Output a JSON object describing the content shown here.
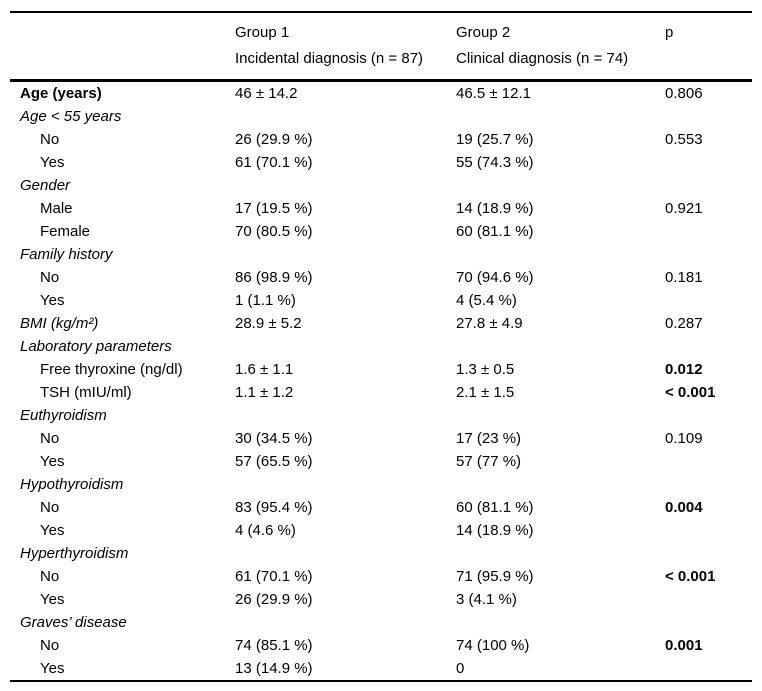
{
  "table": {
    "columns": [
      {
        "key": "label",
        "title": "",
        "subtitle": ""
      },
      {
        "key": "group1",
        "title": "Group 1",
        "subtitle": "Incidental diagnosis (n = 87)"
      },
      {
        "key": "group2",
        "title": "Group 2",
        "subtitle": "Clinical diagnosis (n = 74)"
      },
      {
        "key": "p",
        "title": "p",
        "subtitle": ""
      }
    ],
    "rows": [
      {
        "label": "Age (years)",
        "style": "bold",
        "indent": 0,
        "group1": "46 ± 14.2",
        "group2": "46.5 ± 12.1",
        "p": "0.806",
        "p_bold": false
      },
      {
        "label": "Age < 55 years",
        "style": "italic",
        "indent": 0,
        "group1": "",
        "group2": "",
        "p": "",
        "p_bold": false
      },
      {
        "label": "No",
        "style": "normal",
        "indent": 1,
        "group1": "26 (29.9 %)",
        "group2": "19 (25.7 %)",
        "p": "0.553",
        "p_bold": false
      },
      {
        "label": "Yes",
        "style": "normal",
        "indent": 1,
        "group1": "61 (70.1 %)",
        "group2": "55 (74.3 %)",
        "p": "",
        "p_bold": false
      },
      {
        "label": "Gender",
        "style": "italic",
        "indent": 0,
        "group1": "",
        "group2": "",
        "p": "",
        "p_bold": false
      },
      {
        "label": "Male",
        "style": "normal",
        "indent": 1,
        "group1": "17 (19.5 %)",
        "group2": "14 (18.9 %)",
        "p": "0.921",
        "p_bold": false
      },
      {
        "label": "Female",
        "style": "normal",
        "indent": 1,
        "group1": "70 (80.5 %)",
        "group2": "60 (81.1 %)",
        "p": "",
        "p_bold": false
      },
      {
        "label": "Family history",
        "style": "italic",
        "indent": 0,
        "group1": "",
        "group2": "",
        "p": "",
        "p_bold": false
      },
      {
        "label": "No",
        "style": "normal",
        "indent": 1,
        "group1": "86 (98.9 %)",
        "group2": "70 (94.6 %)",
        "p": "0.181",
        "p_bold": false
      },
      {
        "label": "Yes",
        "style": "normal",
        "indent": 1,
        "group1": "1 (1.1 %)",
        "group2": "4 (5.4 %)",
        "p": "",
        "p_bold": false
      },
      {
        "label": "BMI (kg/m²)",
        "style": "italic",
        "indent": 0,
        "group1": "28.9 ± 5.2",
        "group2": "27.8 ± 4.9",
        "p": "0.287",
        "p_bold": false
      },
      {
        "label": "Laboratory parameters",
        "style": "italic",
        "indent": 0,
        "group1": "",
        "group2": "",
        "p": "",
        "p_bold": false
      },
      {
        "label": "Free thyroxine (ng/dl)",
        "style": "normal",
        "indent": 1,
        "group1": "1.6 ± 1.1",
        "group2": "1.3 ± 0.5",
        "p": "0.012",
        "p_bold": true
      },
      {
        "label": "TSH (mIU/ml)",
        "style": "normal",
        "indent": 1,
        "group1": "1.1 ± 1.2",
        "group2": "2.1 ± 1.5",
        "p": "< 0.001",
        "p_bold": true
      },
      {
        "label": "Euthyroidism",
        "style": "italic",
        "indent": 0,
        "group1": "",
        "group2": "",
        "p": "",
        "p_bold": false
      },
      {
        "label": "No",
        "style": "normal",
        "indent": 1,
        "group1": "30 (34.5 %)",
        "group2": "17 (23 %)",
        "p": "0.109",
        "p_bold": false
      },
      {
        "label": "Yes",
        "style": "normal",
        "indent": 1,
        "group1": "57 (65.5 %)",
        "group2": "57 (77 %)",
        "p": "",
        "p_bold": false
      },
      {
        "label": "Hypothyroidism",
        "style": "italic",
        "indent": 0,
        "group1": "",
        "group2": "",
        "p": "",
        "p_bold": false
      },
      {
        "label": "No",
        "style": "normal",
        "indent": 1,
        "group1": "83 (95.4 %)",
        "group2": "60 (81.1 %)",
        "p": "0.004",
        "p_bold": true
      },
      {
        "label": "Yes",
        "style": "normal",
        "indent": 1,
        "group1": "4 (4.6 %)",
        "group2": "14 (18.9 %)",
        "p": "",
        "p_bold": false
      },
      {
        "label": "Hyperthyroidism",
        "style": "italic",
        "indent": 0,
        "group1": "",
        "group2": "",
        "p": "",
        "p_bold": false
      },
      {
        "label": "No",
        "style": "normal",
        "indent": 1,
        "group1": "61 (70.1 %)",
        "group2": "71 (95.9 %)",
        "p": "< 0.001",
        "p_bold": true
      },
      {
        "label": "Yes",
        "style": "normal",
        "indent": 1,
        "group1": "26 (29.9 %)",
        "group2": "3 (4.1 %)",
        "p": "",
        "p_bold": false
      },
      {
        "label": "Graves’ disease",
        "style": "italic",
        "indent": 0,
        "group1": "",
        "group2": "",
        "p": "",
        "p_bold": false
      },
      {
        "label": "No",
        "style": "normal",
        "indent": 1,
        "group1": "74 (85.1 %)",
        "group2": "74 (100 %)",
        "p": "0.001",
        "p_bold": true
      },
      {
        "label": "Yes",
        "style": "normal",
        "indent": 1,
        "group1": "13 (14.9 %)",
        "group2": "0",
        "p": "",
        "p_bold": false
      }
    ],
    "colors": {
      "text": "#000000",
      "background": "#ffffff",
      "rule": "#000000"
    }
  }
}
